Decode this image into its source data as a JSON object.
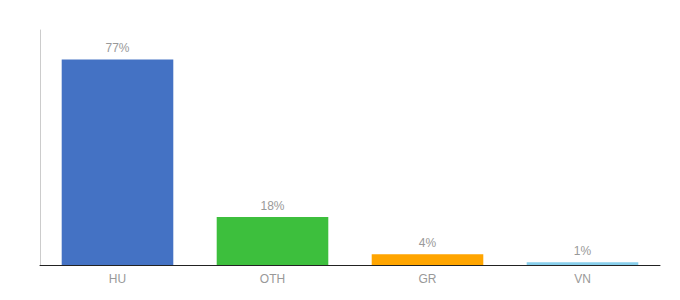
{
  "chart_data": {
    "type": "bar",
    "categories": [
      "HU",
      "OTH",
      "GR",
      "VN"
    ],
    "values": [
      77,
      18,
      4,
      1
    ],
    "value_labels": [
      "77%",
      "18%",
      "4%",
      "1%"
    ],
    "data_labels": true,
    "colors": [
      "#4472C4",
      "#3DBF3D",
      "#FFA500",
      "#87CEEB"
    ],
    "ylim": [
      0,
      88
    ],
    "tick_labels": "x",
    "grid": false
  }
}
